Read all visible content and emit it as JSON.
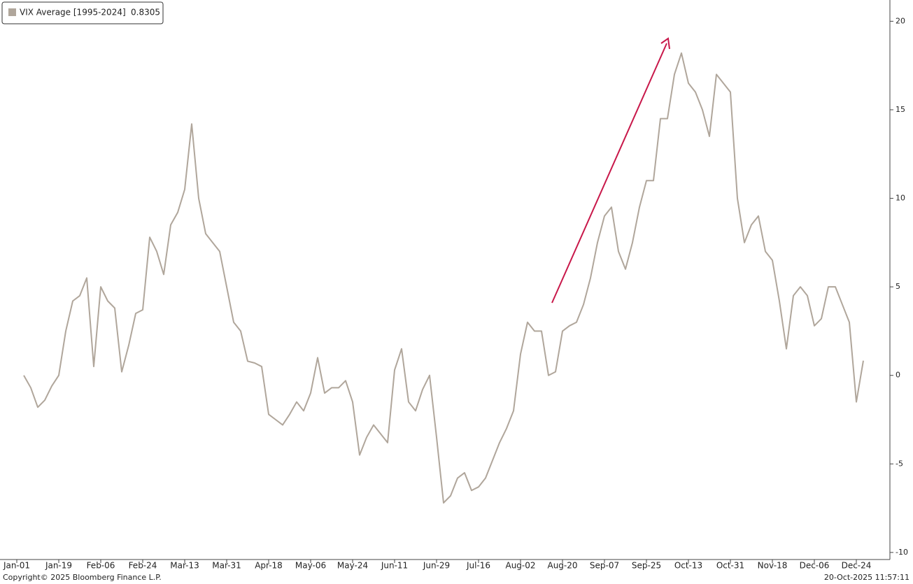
{
  "chart_data": {
    "type": "line",
    "footer_left": "Copyright© 2025 Bloomberg Finance L.P.",
    "footer_right": "20-Oct-2025 11:57:11",
    "categories": [
      "Jan-01",
      null,
      null,
      null,
      null,
      null,
      "Jan-19",
      null,
      null,
      null,
      null,
      null,
      "Feb-06",
      null,
      null,
      null,
      null,
      null,
      "Feb-24",
      null,
      null,
      null,
      null,
      null,
      "Mar-13",
      null,
      null,
      null,
      null,
      null,
      "Mar-31",
      null,
      null,
      null,
      null,
      null,
      "Apr-18",
      null,
      null,
      null,
      null,
      null,
      "May-06",
      null,
      null,
      null,
      null,
      null,
      "May-24",
      null,
      null,
      null,
      null,
      null,
      "Jun-11",
      null,
      null,
      null,
      null,
      null,
      "Jun-29",
      null,
      null,
      null,
      null,
      null,
      "Jul-16",
      null,
      null,
      null,
      null,
      null,
      "Aug-02",
      null,
      null,
      null,
      null,
      null,
      "Aug-20",
      null,
      null,
      null,
      null,
      null,
      "Sep-07",
      null,
      null,
      null,
      null,
      null,
      "Sep-25",
      null,
      null,
      null,
      null,
      null,
      "Oct-13",
      null,
      null,
      null,
      null,
      null,
      "Oct-31",
      null,
      null,
      null,
      null,
      null,
      "Nov-18",
      null,
      null,
      null,
      null,
      null,
      "Dec-06",
      null,
      null,
      null,
      null,
      null,
      "Dec-24",
      null
    ],
    "series": [
      {
        "name": "VIX Average [1995-2024]",
        "color": "#b0a69b",
        "values": [
          null,
          0,
          -0.7,
          -1.8,
          -1.4,
          -0.6,
          0,
          2.5,
          4.2,
          4.5,
          5.5,
          0.5,
          5,
          4.2,
          3.8,
          0.2,
          1.7,
          3.5,
          3.7,
          7.8,
          7,
          5.7,
          8.5,
          9.2,
          10.5,
          14.2,
          10,
          8,
          7.5,
          7,
          5,
          3,
          2.5,
          0.8,
          0.7,
          0.5,
          -2.2,
          -2.5,
          -2.8,
          -2.2,
          -1.5,
          -2,
          -1,
          1,
          -1,
          -0.7,
          -0.7,
          -0.3,
          -1.5,
          -4.5,
          -3.5,
          -2.8,
          -3.3,
          -3.8,
          0.3,
          1.5,
          -1.5,
          -2,
          -0.8,
          0,
          -3.5,
          -7.2,
          -6.8,
          -5.8,
          -5.5,
          -6.5,
          -6.3,
          -5.8,
          -4.8,
          -3.8,
          -3,
          -2,
          1.2,
          3,
          2.5,
          2.5,
          0,
          0.2,
          2.5,
          2.8,
          3,
          4,
          5.5,
          7.5,
          9,
          9.5,
          7,
          6,
          7.5,
          9.5,
          11,
          11,
          14.5,
          14.5,
          17,
          18.2,
          16.5,
          16,
          15,
          13.5,
          17,
          16.5,
          16,
          10,
          7.5,
          8.5,
          9,
          7,
          6.5,
          4.2,
          1.5,
          4.5,
          5,
          4.5,
          2.8,
          3.2,
          5,
          5,
          4,
          3,
          -1.5,
          0.8305
        ]
      }
    ],
    "ylim": [
      -10.4,
      21.2
    ],
    "yticks": [
      -10,
      -5,
      0,
      5,
      10,
      15,
      20
    ],
    "y_axis_side": "right"
  }
}
